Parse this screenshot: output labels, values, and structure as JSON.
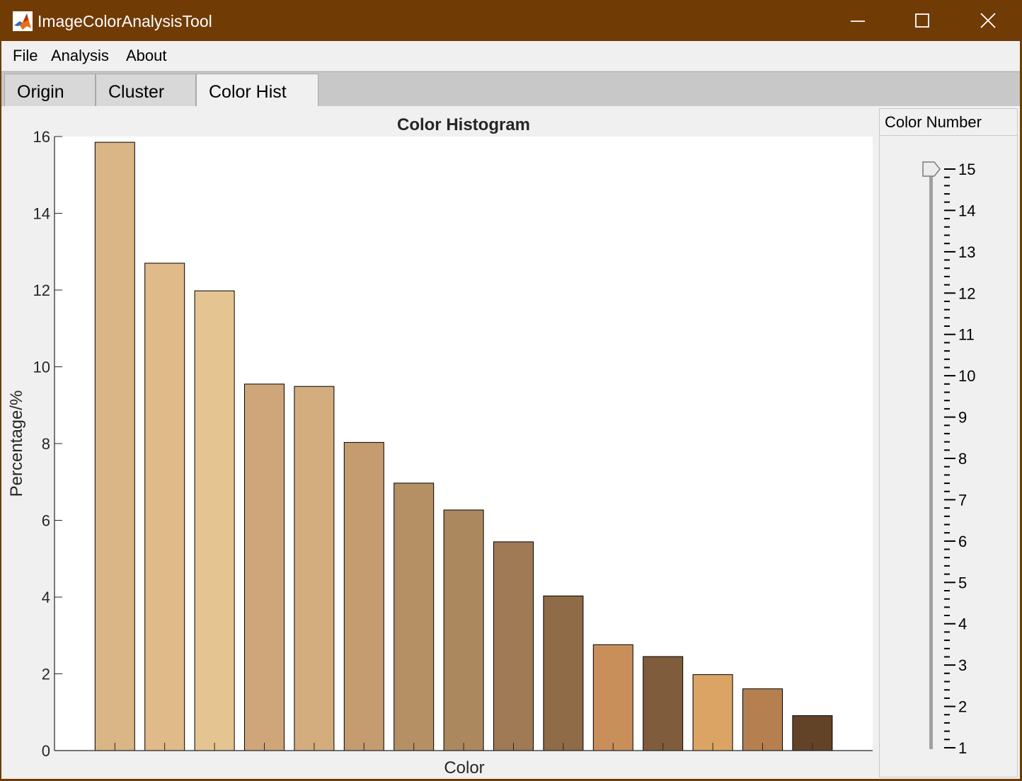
{
  "window": {
    "title": "ImageColorAnalysisTool",
    "titlebar_color": "#713b05",
    "icon": "matlab-logo-icon",
    "controls": [
      "minimize-icon",
      "maximize-icon",
      "close-icon"
    ]
  },
  "menu": {
    "items": [
      "File",
      "Analysis",
      "About"
    ]
  },
  "tabs": {
    "items": [
      "Origin",
      "Cluster",
      "Color Hist"
    ],
    "active": "Color Hist"
  },
  "panel": {
    "title": "Color Number",
    "slider": {
      "min": 1,
      "max": 15,
      "value": 15,
      "tick_labels": [
        "15",
        "14",
        "13",
        "12",
        "11",
        "10",
        "9",
        "8",
        "7",
        "6",
        "5",
        "4",
        "3",
        "2",
        "1"
      ]
    }
  },
  "chart_data": {
    "type": "bar",
    "title": "Color Histogram",
    "xlabel": "Color",
    "ylabel": "Percentage/%",
    "ylim": [
      0,
      16
    ],
    "yticks": [
      "0",
      "2",
      "4",
      "6",
      "8",
      "10",
      "12",
      "14",
      "16"
    ],
    "grid": false,
    "values": [
      15.85,
      12.7,
      11.98,
      9.55,
      9.49,
      8.03,
      6.97,
      6.27,
      5.44,
      4.03,
      2.76,
      2.45,
      1.98,
      1.61,
      0.91
    ],
    "colors": [
      "#dab585",
      "#e0ba88",
      "#e4c490",
      "#cea67a",
      "#d4ad7f",
      "#c49c6f",
      "#b69065",
      "#ac885e",
      "#a07a55",
      "#8f6b48",
      "#c98f5b",
      "#7f5c3b",
      "#dba464",
      "#b67f50",
      "#634328"
    ]
  }
}
